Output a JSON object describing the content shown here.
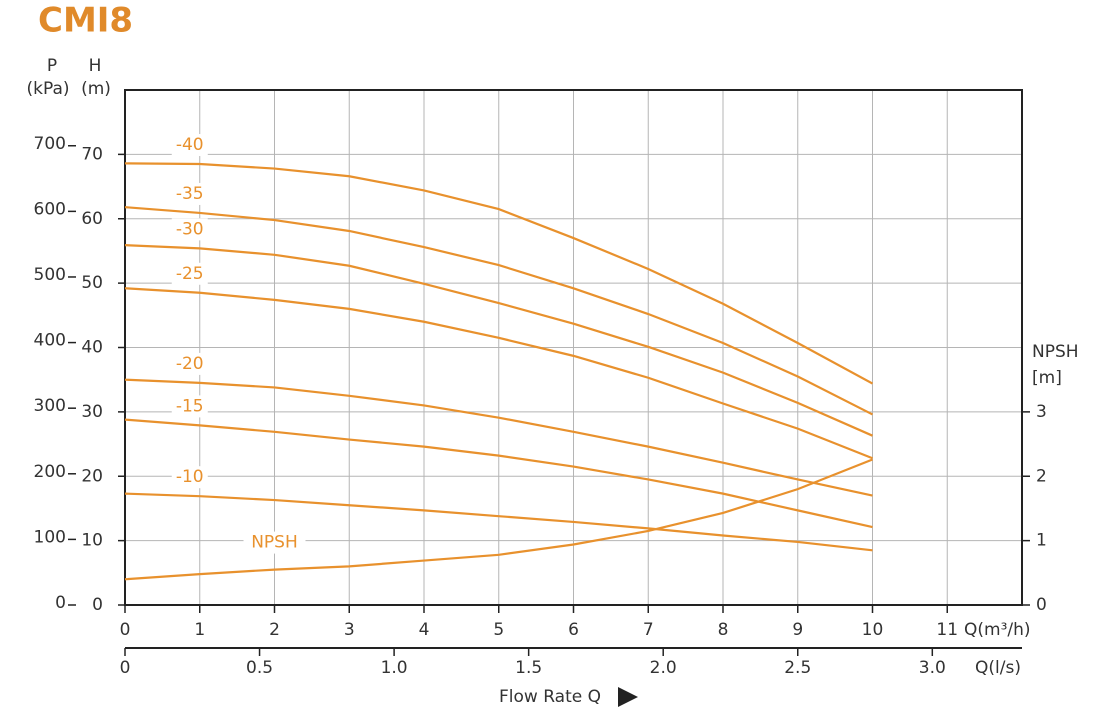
{
  "chart_data": {
    "type": "line",
    "title": "CMI8",
    "p_label": "P",
    "p_unit": "(kPa)",
    "h_label": "H",
    "h_unit": "(m)",
    "y2_label": "NPSH",
    "y2_unit": "[m]",
    "x_label": "Q(m³/h)",
    "x2_label": "Q(l/s)",
    "axis_title": "Flow Rate Q",
    "color": "#e8912d",
    "grid": true,
    "x": [
      0,
      1,
      2,
      3,
      4,
      5,
      6,
      7,
      8,
      9,
      10
    ],
    "xlim": [
      0,
      12
    ],
    "xticks": [
      0,
      1,
      2,
      3,
      4,
      5,
      6,
      7,
      8,
      9,
      10,
      11
    ],
    "x2lim": [
      0,
      3.3333
    ],
    "x2ticks": [
      0,
      0.5,
      {
        "value": 1,
        "label": "1.0"
      },
      1.5,
      {
        "value": 2,
        "label": "2.0"
      },
      2.5,
      {
        "value": 3,
        "label": "3.0"
      }
    ],
    "ylim": [
      0,
      80
    ],
    "yticks": [
      0,
      10,
      20,
      30,
      40,
      50,
      60,
      70
    ],
    "plim": [
      0,
      785
    ],
    "pticks": [
      0,
      100,
      200,
      300,
      400,
      500,
      600,
      700
    ],
    "y2lim": [
      0,
      8
    ],
    "y2ticks": [
      0,
      1,
      2,
      3
    ],
    "series": [
      {
        "name": "-40",
        "values": [
          68.6,
          68.5,
          67.8,
          66.6,
          64.4,
          61.5,
          57.0,
          52.2,
          46.8,
          40.7,
          34.4
        ]
      },
      {
        "name": "-35",
        "values": [
          61.8,
          60.9,
          59.8,
          58.1,
          55.6,
          52.8,
          49.2,
          45.2,
          40.7,
          35.5,
          29.6
        ]
      },
      {
        "name": "-30",
        "values": [
          55.9,
          55.4,
          54.4,
          52.7,
          49.9,
          46.9,
          43.7,
          40.1,
          36.1,
          31.4,
          26.3
        ]
      },
      {
        "name": "-25",
        "values": [
          49.2,
          48.5,
          47.4,
          46.0,
          44.0,
          41.5,
          38.7,
          35.3,
          31.3,
          27.4,
          22.8
        ]
      },
      {
        "name": "-20",
        "values": [
          35.0,
          34.5,
          33.8,
          32.5,
          31.0,
          29.1,
          26.9,
          24.6,
          22.1,
          19.5,
          17.0
        ]
      },
      {
        "name": "-15",
        "values": [
          28.8,
          27.9,
          26.9,
          25.7,
          24.6,
          23.2,
          21.5,
          19.5,
          17.3,
          14.7,
          12.1
        ]
      },
      {
        "name": "-10",
        "values": [
          17.3,
          16.9,
          16.3,
          15.5,
          14.7,
          13.8,
          12.9,
          11.9,
          10.8,
          9.8,
          8.5
        ]
      },
      {
        "name": "NPSH",
        "axis": "y2",
        "values": [
          0.4,
          0.48,
          0.55,
          0.6,
          0.69,
          0.78,
          0.94,
          1.15,
          1.43,
          1.8,
          2.26
        ]
      }
    ]
  }
}
